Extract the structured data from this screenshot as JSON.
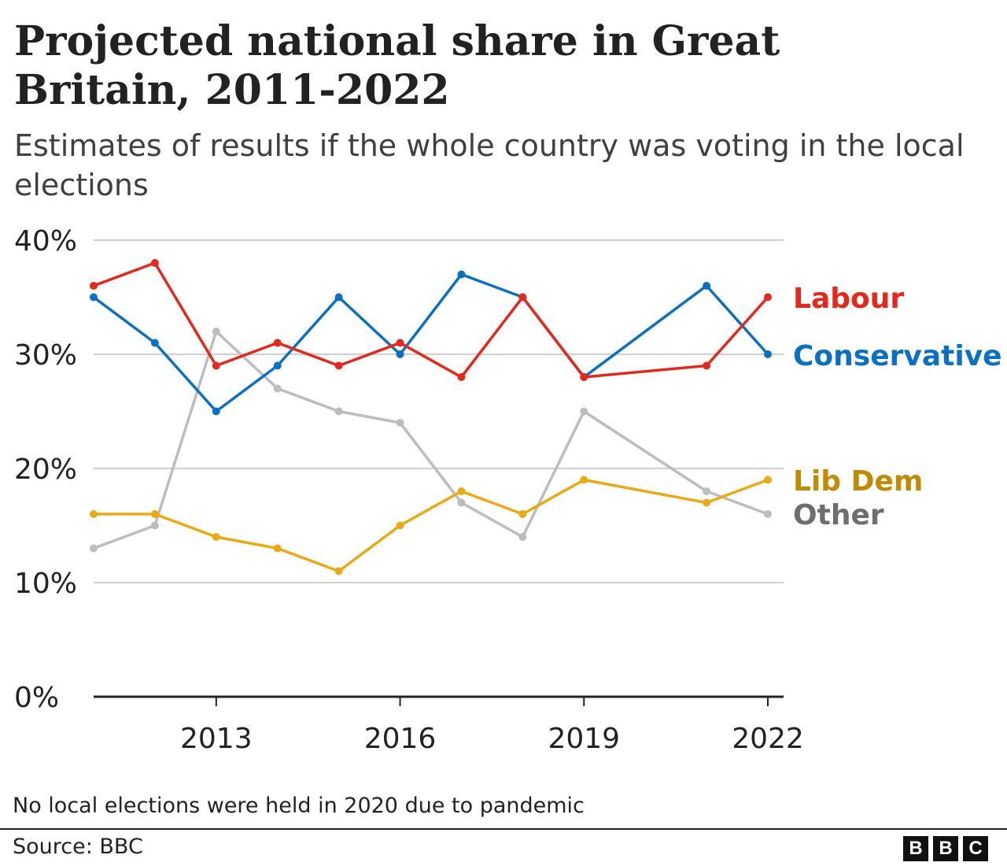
{
  "chart_data": {
    "type": "line",
    "title": "Projected national share in Great Britain, 2011-2022",
    "subtitle": "Estimates of results if the whole country was voting in the local elections",
    "x": [
      2011,
      2012,
      2013,
      2014,
      2015,
      2016,
      2017,
      2018,
      2019,
      2021,
      2022
    ],
    "xlim": [
      2011,
      2022
    ],
    "xticks": [
      2013,
      2016,
      2019,
      2022
    ],
    "xtick_labels": [
      "2013",
      "2016",
      "2019",
      "2022"
    ],
    "ylim": [
      0,
      40
    ],
    "yticks": [
      0,
      10,
      20,
      30,
      40
    ],
    "ytick_labels": [
      "0%",
      "10%",
      "20%",
      "30%",
      "40%"
    ],
    "grid": true,
    "legend": "direct labels at right",
    "series": [
      {
        "name": "Labour",
        "color": "#e4281b",
        "values": [
          36,
          38,
          29,
          31,
          29,
          31,
          28,
          35,
          28,
          29,
          35
        ]
      },
      {
        "name": "Conservative",
        "color": "#0a70c4",
        "values": [
          35,
          31,
          25,
          29,
          35,
          30,
          37,
          35,
          28,
          36,
          30
        ]
      },
      {
        "name": "Lib Dem",
        "color": "#eaaa14",
        "label_color": "#c08b00",
        "values": [
          16,
          16,
          14,
          13,
          11,
          15,
          18,
          16,
          19,
          17,
          19
        ]
      },
      {
        "name": "Other",
        "color": "#bdbdbd",
        "label_color": "#6e6e6e",
        "values": [
          13,
          15,
          32,
          27,
          25,
          24,
          17,
          14,
          25,
          18,
          16
        ]
      }
    ]
  },
  "footer": {
    "note": "No local elections were held in 2020 due to pandemic",
    "source": "Source: BBC",
    "logo": [
      "B",
      "B",
      "C"
    ]
  }
}
